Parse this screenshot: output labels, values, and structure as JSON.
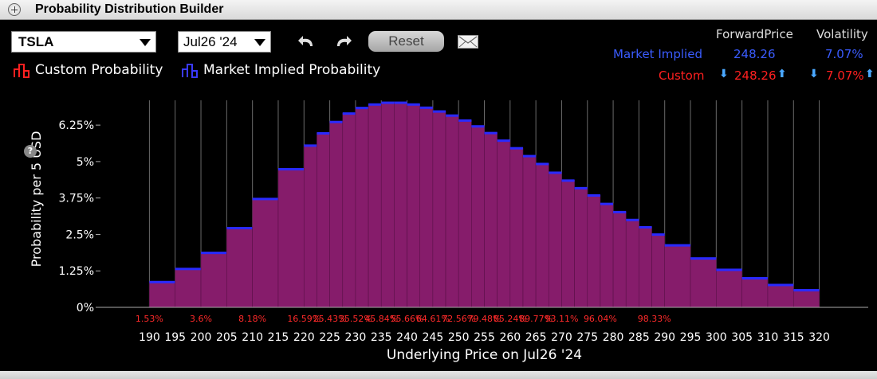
{
  "window": {
    "title": "Probability Distribution Builder"
  },
  "toolbar": {
    "symbol": "TSLA",
    "expiry": "Jul26 '24",
    "reset_label": "Reset"
  },
  "legend": {
    "custom": "Custom Probability",
    "market": "Market Implied Probability"
  },
  "stats": {
    "forward_header": "ForwardPrice",
    "volatility_header": "Volatility",
    "market_label": "Market Implied",
    "market_forward": "248.26",
    "market_vol": "7.07%",
    "custom_label": "Custom",
    "custom_forward": "248.26",
    "custom_vol": "7.07%"
  },
  "colors": {
    "custom": "#ff2020",
    "market": "#3a5cff",
    "bar_fill": "#861c6b",
    "bar_cap": "#2a2aff",
    "cumulative": "#ff2a2a"
  },
  "chart_data": {
    "type": "bar",
    "ylabel": "Probability per 5 USD",
    "xlabel": "Underlying Price on Jul26 '24",
    "ylim": [
      0,
      7.1
    ],
    "yticks": [
      "0%",
      "1.25%",
      "2.5%",
      "3.75%",
      "5%",
      "6.25%"
    ],
    "ytick_values": [
      0,
      1.25,
      2.5,
      3.75,
      5,
      6.25
    ],
    "xticks": [
      "190",
      "195",
      "200",
      "205",
      "210",
      "215",
      "220",
      "225",
      "230",
      "235",
      "240",
      "245",
      "250",
      "255",
      "260",
      "265",
      "270",
      "275",
      "280",
      "285",
      "290",
      "295",
      "300",
      "305",
      "310",
      "315",
      "320"
    ],
    "bins": [
      {
        "from": 190,
        "to": 195,
        "value": 0.88
      },
      {
        "from": 195,
        "to": 200,
        "value": 1.33
      },
      {
        "from": 200,
        "to": 205,
        "value": 1.88
      },
      {
        "from": 205,
        "to": 210,
        "value": 2.73
      },
      {
        "from": 210,
        "to": 215,
        "value": 3.73
      },
      {
        "from": 215,
        "to": 220,
        "value": 4.75
      },
      {
        "from": 220,
        "to": 222.5,
        "value": 5.56
      },
      {
        "from": 222.5,
        "to": 225,
        "value": 5.98
      },
      {
        "from": 225,
        "to": 227.5,
        "value": 6.37
      },
      {
        "from": 227.5,
        "to": 230,
        "value": 6.66
      },
      {
        "from": 230,
        "to": 232.5,
        "value": 6.85
      },
      {
        "from": 232.5,
        "to": 235,
        "value": 6.97
      },
      {
        "from": 235,
        "to": 237.5,
        "value": 7.03
      },
      {
        "from": 237.5,
        "to": 240,
        "value": 7.03
      },
      {
        "from": 240,
        "to": 242.5,
        "value": 6.97
      },
      {
        "from": 242.5,
        "to": 245,
        "value": 6.86
      },
      {
        "from": 245,
        "to": 247.5,
        "value": 6.73
      },
      {
        "from": 247.5,
        "to": 250,
        "value": 6.59
      },
      {
        "from": 250,
        "to": 252.5,
        "value": 6.42
      },
      {
        "from": 252.5,
        "to": 255,
        "value": 6.22
      },
      {
        "from": 255,
        "to": 257.5,
        "value": 5.99
      },
      {
        "from": 257.5,
        "to": 260,
        "value": 5.73
      },
      {
        "from": 260,
        "to": 262.5,
        "value": 5.47
      },
      {
        "from": 262.5,
        "to": 265,
        "value": 5.2
      },
      {
        "from": 265,
        "to": 267.5,
        "value": 4.93
      },
      {
        "from": 267.5,
        "to": 270,
        "value": 4.63
      },
      {
        "from": 270,
        "to": 272.5,
        "value": 4.36
      },
      {
        "from": 272.5,
        "to": 275,
        "value": 4.1
      },
      {
        "from": 275,
        "to": 277.5,
        "value": 3.85
      },
      {
        "from": 277.5,
        "to": 280,
        "value": 3.56
      },
      {
        "from": 280,
        "to": 282.5,
        "value": 3.28
      },
      {
        "from": 282.5,
        "to": 285,
        "value": 3.01
      },
      {
        "from": 285,
        "to": 287.5,
        "value": 2.76
      },
      {
        "from": 287.5,
        "to": 290,
        "value": 2.51
      },
      {
        "from": 290,
        "to": 295,
        "value": 2.14
      },
      {
        "from": 295,
        "to": 300,
        "value": 1.69
      },
      {
        "from": 300,
        "to": 305,
        "value": 1.3
      },
      {
        "from": 305,
        "to": 310,
        "value": 1.01
      },
      {
        "from": 310,
        "to": 315,
        "value": 0.78
      },
      {
        "from": 315,
        "to": 320,
        "value": 0.6
      }
    ],
    "cumulative_labels": [
      {
        "x": 190,
        "text": "1.53%"
      },
      {
        "x": 200,
        "text": "3.6%"
      },
      {
        "x": 210,
        "text": "8.18%"
      },
      {
        "x": 220,
        "text": "16.59%"
      },
      {
        "x": 225,
        "text": "25.43%"
      },
      {
        "x": 230,
        "text": "35.52%"
      },
      {
        "x": 235,
        "text": "45.84%"
      },
      {
        "x": 240,
        "text": "55.66%"
      },
      {
        "x": 245,
        "text": "64.61%"
      },
      {
        "x": 250,
        "text": "72.56%"
      },
      {
        "x": 255,
        "text": "79.48%"
      },
      {
        "x": 260,
        "text": "85.24%"
      },
      {
        "x": 265,
        "text": "89.77%"
      },
      {
        "x": 270,
        "text": "93.11%"
      },
      {
        "x": 277.5,
        "text": "96.04%"
      },
      {
        "x": 288,
        "text": "98.33%"
      }
    ]
  }
}
